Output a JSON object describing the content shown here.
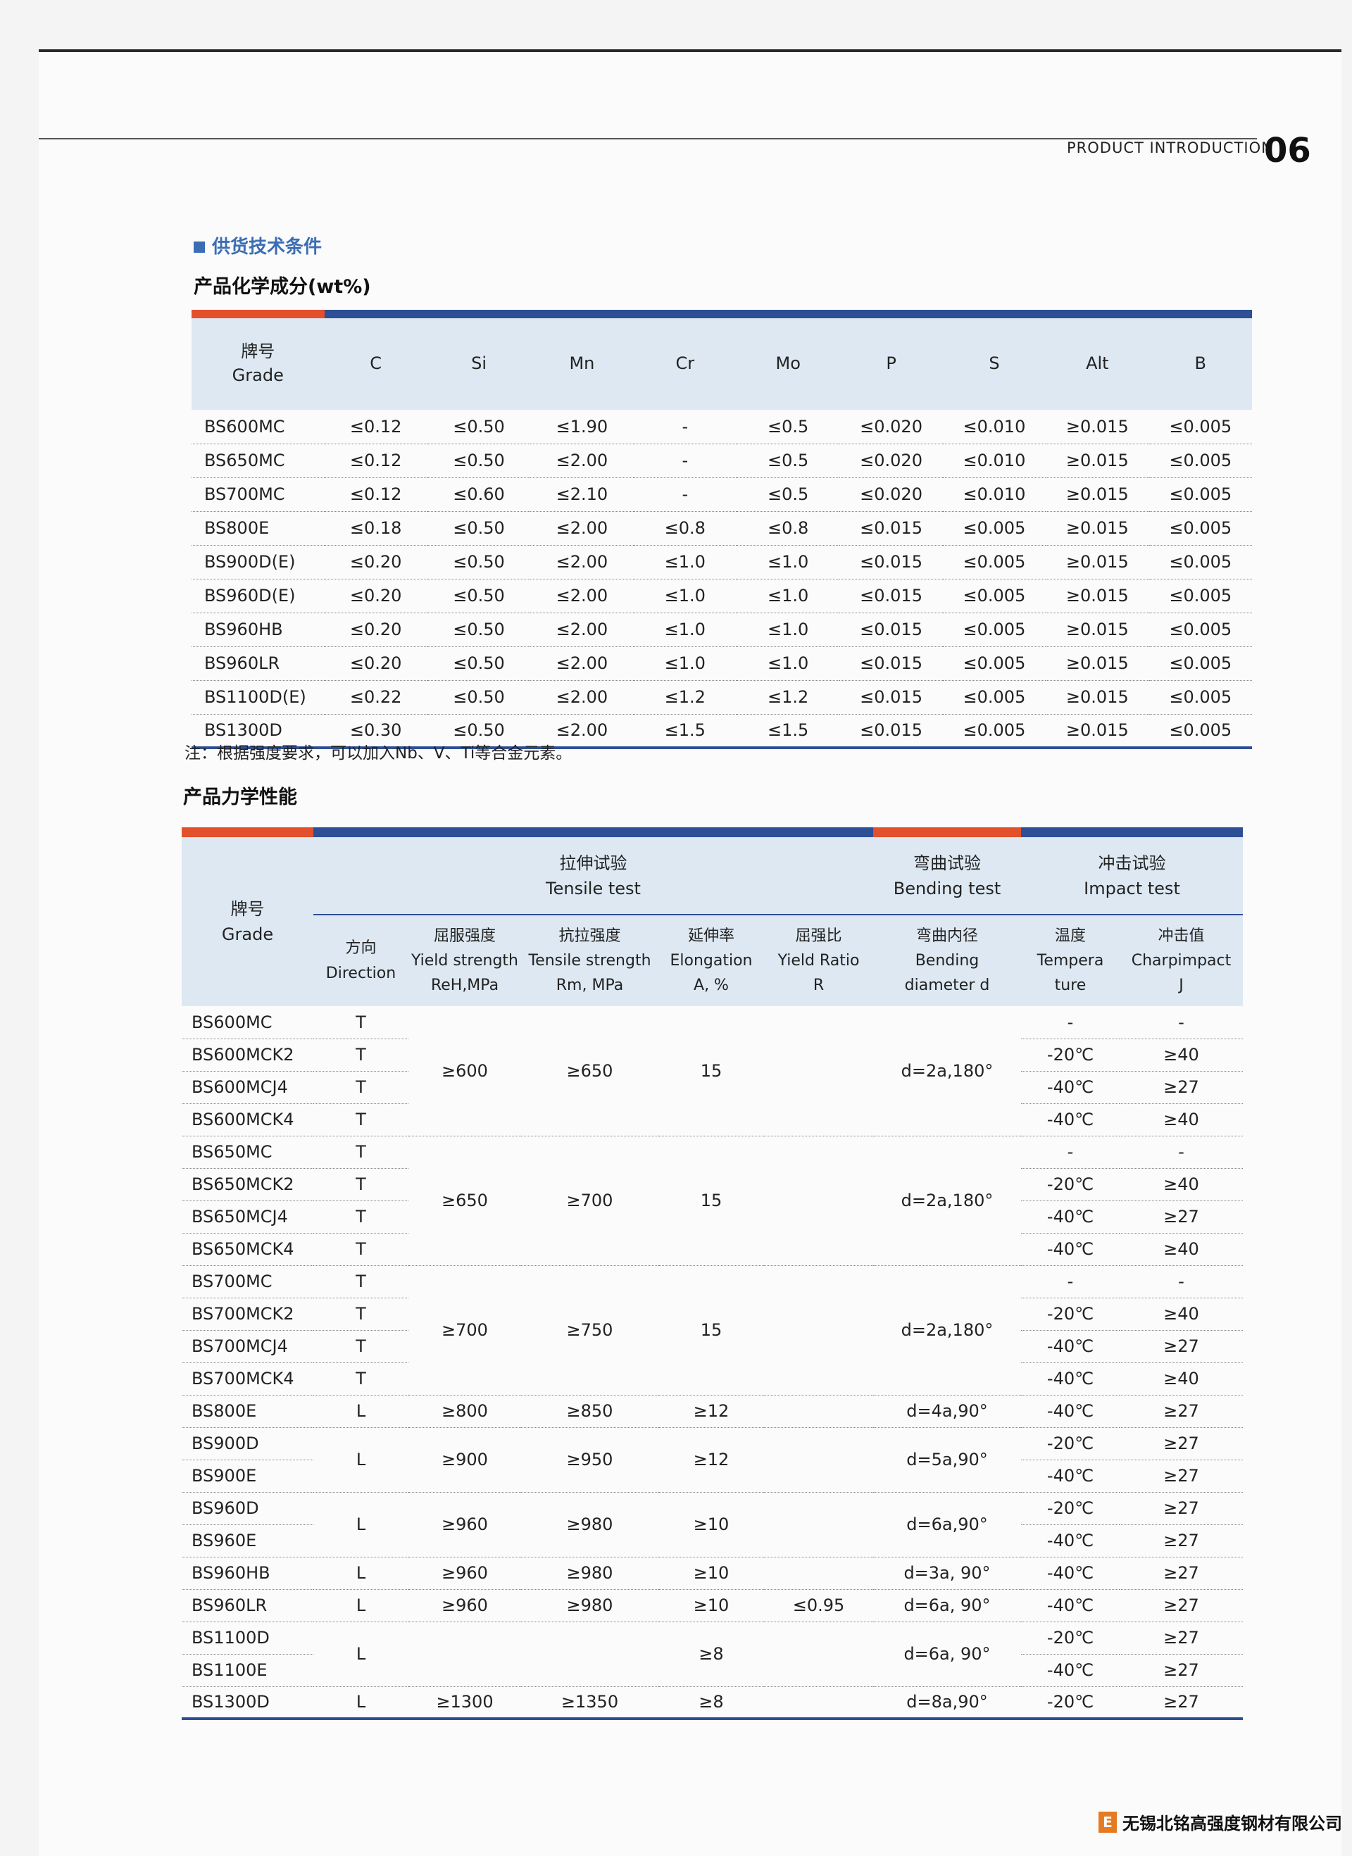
{
  "header": {
    "label": "PRODUCT INTRODUCTION",
    "page": "06"
  },
  "section_title": "供货技术条件",
  "chem": {
    "title": "产品化学成分(wt%)",
    "headers": [
      "牌号\nGrade",
      "C",
      "Si",
      "Mn",
      "Cr",
      "Mo",
      "P",
      "S",
      "Alt",
      "B"
    ],
    "rows": [
      [
        "BS600MC",
        "≤0.12",
        "≤0.50",
        "≤1.90",
        "-",
        "≤0.5",
        "≤0.020",
        "≤0.010",
        "≥0.015",
        "≤0.005"
      ],
      [
        "BS650MC",
        "≤0.12",
        "≤0.50",
        "≤2.00",
        "-",
        "≤0.5",
        "≤0.020",
        "≤0.010",
        "≥0.015",
        "≤0.005"
      ],
      [
        "BS700MC",
        "≤0.12",
        "≤0.60",
        "≤2.10",
        "-",
        "≤0.5",
        "≤0.020",
        "≤0.010",
        "≥0.015",
        "≤0.005"
      ],
      [
        "BS800E",
        "≤0.18",
        "≤0.50",
        "≤2.00",
        "≤0.8",
        "≤0.8",
        "≤0.015",
        "≤0.005",
        "≥0.015",
        "≤0.005"
      ],
      [
        "BS900D(E)",
        "≤0.20",
        "≤0.50",
        "≤2.00",
        "≤1.0",
        "≤1.0",
        "≤0.015",
        "≤0.005",
        "≥0.015",
        "≤0.005"
      ],
      [
        "BS960D(E)",
        "≤0.20",
        "≤0.50",
        "≤2.00",
        "≤1.0",
        "≤1.0",
        "≤0.015",
        "≤0.005",
        "≥0.015",
        "≤0.005"
      ],
      [
        "BS960HB",
        "≤0.20",
        "≤0.50",
        "≤2.00",
        "≤1.0",
        "≤1.0",
        "≤0.015",
        "≤0.005",
        "≥0.015",
        "≤0.005"
      ],
      [
        "BS960LR",
        "≤0.20",
        "≤0.50",
        "≤2.00",
        "≤1.0",
        "≤1.0",
        "≤0.015",
        "≤0.005",
        "≥0.015",
        "≤0.005"
      ],
      [
        "BS1100D(E)",
        "≤0.22",
        "≤0.50",
        "≤2.00",
        "≤1.2",
        "≤1.2",
        "≤0.015",
        "≤0.005",
        "≥0.015",
        "≤0.005"
      ],
      [
        "BS1300D",
        "≤0.30",
        "≤0.50",
        "≤2.00",
        "≤1.5",
        "≤1.5",
        "≤0.015",
        "≤0.005",
        "≥0.015",
        "≤0.005"
      ]
    ],
    "note": "注：根据强度要求，可以加入Nb、V、Ti等合金元素。"
  },
  "mech": {
    "title": "产品力学性能",
    "grade_header": "牌号\nGrade",
    "groups": [
      "拉伸试验\nTensile test",
      "弯曲试验\nBending test",
      "冲击试验\nImpact test"
    ],
    "sub_headers": [
      "方向\nDirection",
      "屈服强度\nYield strength\nReH,MPa",
      "抗拉强度\nTensile strength\nRm, MPa",
      "延伸率\nElongation\nA, %",
      "屈强比\nYield Ratio\nR",
      "弯曲内径\nBending\ndiameter d",
      "温度\nTempera\nture",
      "冲击值\nCharpimpact\nJ"
    ],
    "blocks": [
      {
        "grades": [
          "BS600MC",
          "BS600MCK2",
          "BS600MCJ4",
          "BS600MCK4"
        ],
        "direction": [
          "T",
          "T",
          "T",
          "T"
        ],
        "yield": "≥600",
        "tensile": "≥650",
        "elongation": "15",
        "ratio": "",
        "bending": "d=2a,180°",
        "temp": [
          "-",
          "-20℃",
          "-40℃",
          "-40℃"
        ],
        "impact": [
          "-",
          "≥40",
          "≥27",
          "≥40"
        ]
      },
      {
        "grades": [
          "BS650MC",
          "BS650MCK2",
          "BS650MCJ4",
          "BS650MCK4"
        ],
        "direction": [
          "T",
          "T",
          "T",
          "T"
        ],
        "yield": "≥650",
        "tensile": "≥700",
        "elongation": "15",
        "ratio": "",
        "bending": "d=2a,180°",
        "temp": [
          "-",
          "-20℃",
          "-40℃",
          "-40℃"
        ],
        "impact": [
          "-",
          "≥40",
          "≥27",
          "≥40"
        ]
      },
      {
        "grades": [
          "BS700MC",
          "BS700MCK2",
          "BS700MCJ4",
          "BS700MCK4"
        ],
        "direction": [
          "T",
          "T",
          "T",
          "T"
        ],
        "yield": "≥700",
        "tensile": "≥750",
        "elongation": "15",
        "ratio": "",
        "bending": "d=2a,180°",
        "temp": [
          "-",
          "-20℃",
          "-40℃",
          "-40℃"
        ],
        "impact": [
          "-",
          "≥40",
          "≥27",
          "≥40"
        ]
      },
      {
        "grades": [
          "BS800E"
        ],
        "direction": [
          "L"
        ],
        "yield": "≥800",
        "tensile": "≥850",
        "elongation": "≥12",
        "ratio": "",
        "bending": "d=4a,90°",
        "temp": [
          "-40℃"
        ],
        "impact": [
          "≥27"
        ]
      },
      {
        "grades": [
          "BS900D",
          "BS900E"
        ],
        "direction": [
          "L"
        ],
        "yield": "≥900",
        "tensile": "≥950",
        "elongation": "≥12",
        "ratio": "",
        "bending": "d=5a,90°",
        "temp": [
          "-20℃",
          "-40℃"
        ],
        "impact": [
          "≥27",
          "≥27"
        ]
      },
      {
        "grades": [
          "BS960D",
          "BS960E"
        ],
        "direction": [
          "L"
        ],
        "yield": "≥960",
        "tensile": "≥980",
        "elongation": "≥10",
        "ratio": "",
        "bending": "d=6a,90°",
        "temp": [
          "-20℃",
          "-40℃"
        ],
        "impact": [
          "≥27",
          "≥27"
        ]
      },
      {
        "grades": [
          "BS960HB"
        ],
        "direction": [
          "L"
        ],
        "yield": "≥960",
        "tensile": "≥980",
        "elongation": "≥10",
        "ratio": "",
        "bending": "d=3a, 90°",
        "temp": [
          "-40℃"
        ],
        "impact": [
          "≥27"
        ]
      },
      {
        "grades": [
          "BS960LR"
        ],
        "direction": [
          "L"
        ],
        "yield": "≥960",
        "tensile": "≥980",
        "elongation": "≥10",
        "ratio": "≤0.95",
        "bending": "d=6a, 90°",
        "temp": [
          "-40℃"
        ],
        "impact": [
          "≥27"
        ]
      },
      {
        "grades": [
          "BS1100D",
          "BS1100E"
        ],
        "direction": [
          "L"
        ],
        "yield": "",
        "tensile": "",
        "elongation": "≥8",
        "ratio": "",
        "bending": "d=6a, 90°",
        "temp": [
          "-20℃",
          "-40℃"
        ],
        "impact": [
          "≥27",
          "≥27"
        ]
      },
      {
        "grades": [
          "BS1300D"
        ],
        "direction": [
          "L"
        ],
        "yield": "≥1300",
        "tensile": "≥1350",
        "elongation": "≥8",
        "ratio": "",
        "bending": "d=8a,90°",
        "temp": [
          "-20℃"
        ],
        "impact": [
          "≥27"
        ]
      }
    ]
  },
  "footer": {
    "company": "无锡北铭高强度钢材有限公司",
    "logo_letter": "E"
  },
  "colors": {
    "accent_blue": "#2d4f96",
    "accent_red": "#e2502c",
    "title_blue": "#3b6db3",
    "header_bg": "#dde8f2"
  }
}
